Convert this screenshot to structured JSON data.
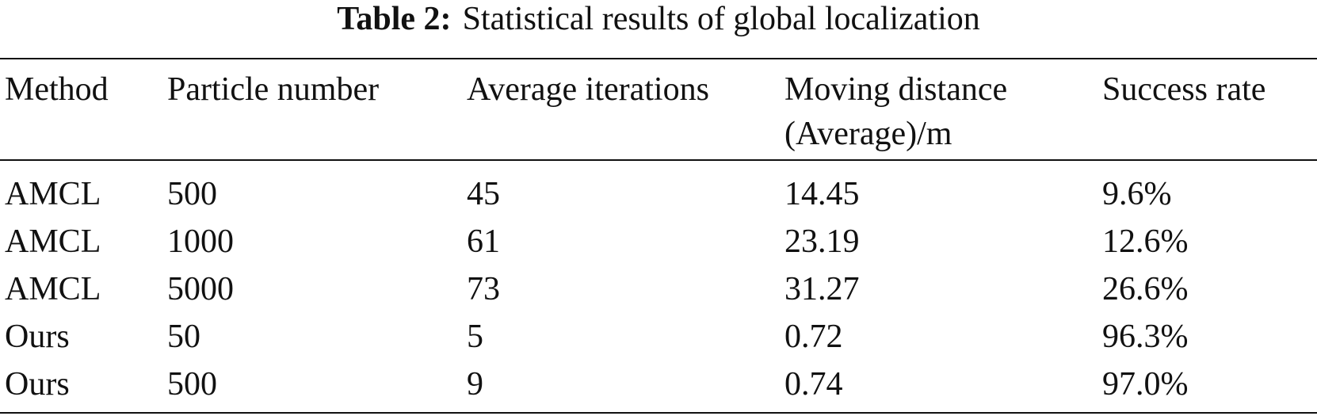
{
  "caption": {
    "label": "Table 2:",
    "text": "Statistical results of global localization"
  },
  "table": {
    "headers": [
      "Method",
      "Particle number",
      "Average iterations",
      "Moving distance (Average)/m",
      "Success rate"
    ],
    "rows": [
      [
        "AMCL",
        "500",
        "45",
        "14.45",
        "9.6%"
      ],
      [
        "AMCL",
        "1000",
        "61",
        "23.19",
        "12.6%"
      ],
      [
        "AMCL",
        "5000",
        "73",
        "31.27",
        "26.6%"
      ],
      [
        "Ours",
        "50",
        "5",
        "0.72",
        "96.3%"
      ],
      [
        "Ours",
        "500",
        "9",
        "0.74",
        "97.0%"
      ]
    ]
  }
}
